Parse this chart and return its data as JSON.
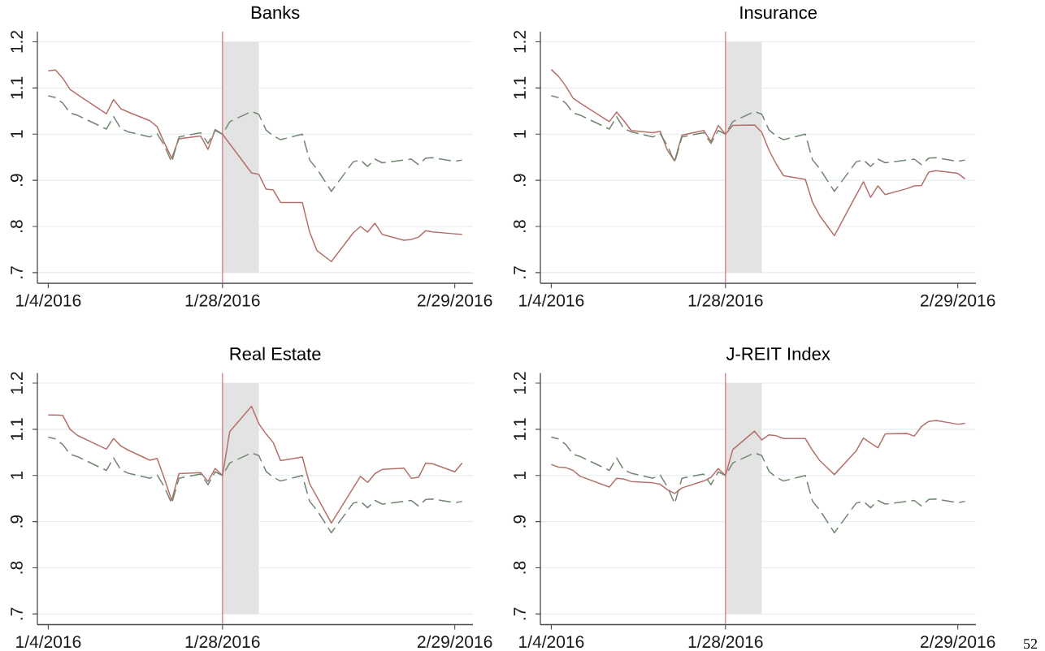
{
  "chart_data": [
    {
      "type": "line",
      "title": "Banks",
      "x": [
        "2016-01-04",
        "2016-01-05",
        "2016-01-06",
        "2016-01-07",
        "2016-01-08",
        "2016-01-12",
        "2016-01-13",
        "2016-01-14",
        "2016-01-15",
        "2016-01-18",
        "2016-01-19",
        "2016-01-20",
        "2016-01-21",
        "2016-01-22",
        "2016-01-25",
        "2016-01-26",
        "2016-01-27",
        "2016-01-28",
        "2016-01-29",
        "2016-02-01",
        "2016-02-02",
        "2016-02-03",
        "2016-02-04",
        "2016-02-05",
        "2016-02-08",
        "2016-02-09",
        "2016-02-10",
        "2016-02-12",
        "2016-02-15",
        "2016-02-16",
        "2016-02-17",
        "2016-02-18",
        "2016-02-19",
        "2016-02-22",
        "2016-02-23",
        "2016-02-24",
        "2016-02-25",
        "2016-02-26",
        "2016-02-29",
        "2016-03-01"
      ],
      "series": [
        {
          "color": "#b5706a",
          "line_style": "solid",
          "values": [
            1.137,
            1.139,
            1.121,
            1.097,
            1.086,
            1.044,
            1.075,
            1.055,
            1.048,
            1.029,
            1.016,
            0.981,
            0.948,
            0.99,
            0.996,
            0.967,
            1.01,
            1.0,
            0.979,
            0.916,
            0.913,
            0.881,
            0.879,
            0.852,
            0.852,
            0.788,
            0.748,
            0.724,
            0.786,
            0.8,
            0.788,
            0.807,
            0.783,
            0.77,
            0.772,
            0.777,
            0.791,
            0.788,
            0.784,
            0.783
          ]
        },
        {
          "color": "#71866f",
          "line_style": "dashed",
          "values": [
            1.083,
            1.079,
            1.067,
            1.046,
            1.041,
            1.011,
            1.038,
            1.012,
            1.005,
            0.994,
            1.001,
            0.975,
            0.939,
            0.994,
            1.003,
            0.98,
            1.008,
            1.0,
            1.027,
            1.049,
            1.043,
            1.009,
            0.996,
            0.988,
            1.0,
            0.944,
            0.925,
            0.876,
            0.94,
            0.944,
            0.93,
            0.946,
            0.938,
            0.944,
            0.946,
            0.934,
            0.948,
            0.949,
            0.941,
            0.944
          ]
        }
      ],
      "xlim": [
        "2016-01-02T12:00",
        "2016-03-02T12:00"
      ],
      "ylim": [
        0.677,
        1.222
      ],
      "xticks": [
        {
          "value": "2016-01-04",
          "label": "1/4/2016"
        },
        {
          "value": "2016-01-28",
          "label": "1/28/2016"
        },
        {
          "value": "2016-02-29",
          "label": "2/29/2016"
        }
      ],
      "yticks": [
        {
          "value": 0.7,
          "label": ".7"
        },
        {
          "value": 0.8,
          "label": ".8"
        },
        {
          "value": 0.9,
          "label": ".9"
        },
        1,
        1.1,
        1.2
      ],
      "grid": "y",
      "marker": "none",
      "ref_lines": [
        {
          "axis": "x",
          "value": "2016-01-28",
          "color": "#d9707a"
        }
      ],
      "bands": [
        {
          "axis": "x",
          "from": "2016-01-28",
          "to": "2016-02-02",
          "color": "#e3e3e3"
        }
      ]
    },
    {
      "type": "line",
      "title": "Insurance",
      "x": [
        "2016-01-04",
        "2016-01-05",
        "2016-01-06",
        "2016-01-07",
        "2016-01-08",
        "2016-01-12",
        "2016-01-13",
        "2016-01-14",
        "2016-01-15",
        "2016-01-18",
        "2016-01-19",
        "2016-01-20",
        "2016-01-21",
        "2016-01-22",
        "2016-01-25",
        "2016-01-26",
        "2016-01-27",
        "2016-01-28",
        "2016-01-29",
        "2016-02-01",
        "2016-02-02",
        "2016-02-03",
        "2016-02-04",
        "2016-02-05",
        "2016-02-08",
        "2016-02-09",
        "2016-02-10",
        "2016-02-12",
        "2016-02-15",
        "2016-02-16",
        "2016-02-17",
        "2016-02-18",
        "2016-02-19",
        "2016-02-22",
        "2016-02-23",
        "2016-02-24",
        "2016-02-25",
        "2016-02-26",
        "2016-02-29",
        "2016-03-01"
      ],
      "series": [
        {
          "color": "#b5706a",
          "line_style": "solid",
          "values": [
            1.14,
            1.125,
            1.104,
            1.078,
            1.067,
            1.027,
            1.048,
            1.029,
            1.008,
            1.003,
            1.006,
            0.965,
            0.942,
            0.998,
            1.008,
            0.984,
            1.019,
            1.0,
            1.019,
            1.02,
            1.004,
            0.965,
            0.935,
            0.91,
            0.902,
            0.852,
            0.823,
            0.78,
            0.868,
            0.897,
            0.863,
            0.888,
            0.869,
            0.882,
            0.888,
            0.889,
            0.918,
            0.921,
            0.915,
            0.903
          ]
        },
        {
          "color": "#71866f",
          "line_style": "dashed",
          "values": [
            1.083,
            1.079,
            1.067,
            1.046,
            1.041,
            1.011,
            1.038,
            1.012,
            1.005,
            0.994,
            1.001,
            0.975,
            0.939,
            0.994,
            1.003,
            0.98,
            1.008,
            1.0,
            1.027,
            1.049,
            1.043,
            1.009,
            0.996,
            0.988,
            1.0,
            0.944,
            0.925,
            0.876,
            0.94,
            0.944,
            0.93,
            0.946,
            0.938,
            0.944,
            0.946,
            0.934,
            0.948,
            0.949,
            0.941,
            0.944
          ]
        }
      ],
      "xlim": [
        "2016-01-02T12:00",
        "2016-03-02T12:00"
      ],
      "ylim": [
        0.677,
        1.222
      ],
      "xticks": [
        {
          "value": "2016-01-04",
          "label": "1/4/2016"
        },
        {
          "value": "2016-01-28",
          "label": "1/28/2016"
        },
        {
          "value": "2016-02-29",
          "label": "2/29/2016"
        }
      ],
      "yticks": [
        {
          "value": 0.7,
          "label": ".7"
        },
        {
          "value": 0.8,
          "label": ".8"
        },
        {
          "value": 0.9,
          "label": ".9"
        },
        1,
        1.1,
        1.2
      ],
      "grid": "y",
      "marker": "none",
      "ref_lines": [
        {
          "axis": "x",
          "value": "2016-01-28",
          "color": "#d9707a"
        }
      ],
      "bands": [
        {
          "axis": "x",
          "from": "2016-01-28",
          "to": "2016-02-02",
          "color": "#e3e3e3"
        }
      ]
    },
    {
      "type": "line",
      "title": "Real Estate",
      "x": [
        "2016-01-04",
        "2016-01-05",
        "2016-01-06",
        "2016-01-07",
        "2016-01-08",
        "2016-01-12",
        "2016-01-13",
        "2016-01-14",
        "2016-01-15",
        "2016-01-18",
        "2016-01-19",
        "2016-01-20",
        "2016-01-21",
        "2016-01-22",
        "2016-01-25",
        "2016-01-26",
        "2016-01-27",
        "2016-01-28",
        "2016-01-29",
        "2016-02-01",
        "2016-02-02",
        "2016-02-03",
        "2016-02-04",
        "2016-02-05",
        "2016-02-08",
        "2016-02-09",
        "2016-02-10",
        "2016-02-12",
        "2016-02-15",
        "2016-02-16",
        "2016-02-17",
        "2016-02-18",
        "2016-02-19",
        "2016-02-22",
        "2016-02-23",
        "2016-02-24",
        "2016-02-25",
        "2016-02-26",
        "2016-02-29",
        "2016-03-01"
      ],
      "series": [
        {
          "color": "#b5706a",
          "line_style": "solid",
          "values": [
            1.131,
            1.131,
            1.13,
            1.1,
            1.087,
            1.057,
            1.08,
            1.064,
            1.055,
            1.033,
            1.037,
            0.993,
            0.946,
            1.004,
            1.006,
            0.987,
            1.015,
            1.0,
            1.095,
            1.15,
            1.112,
            1.09,
            1.071,
            1.032,
            1.04,
            0.982,
            0.954,
            0.897,
            0.973,
            0.998,
            0.985,
            1.004,
            1.013,
            1.016,
            0.994,
            0.996,
            1.027,
            1.025,
            1.008,
            1.027
          ]
        },
        {
          "color": "#71866f",
          "line_style": "dashed",
          "values": [
            1.083,
            1.079,
            1.067,
            1.046,
            1.041,
            1.011,
            1.038,
            1.012,
            1.005,
            0.994,
            1.001,
            0.975,
            0.939,
            0.994,
            1.003,
            0.98,
            1.008,
            1.0,
            1.027,
            1.049,
            1.043,
            1.009,
            0.996,
            0.988,
            1.0,
            0.944,
            0.925,
            0.876,
            0.94,
            0.944,
            0.93,
            0.946,
            0.938,
            0.944,
            0.946,
            0.934,
            0.948,
            0.949,
            0.941,
            0.944
          ]
        }
      ],
      "xlim": [
        "2016-01-02T12:00",
        "2016-03-02T12:00"
      ],
      "ylim": [
        0.677,
        1.222
      ],
      "xticks": [
        {
          "value": "2016-01-04",
          "label": "1/4/2016"
        },
        {
          "value": "2016-01-28",
          "label": "1/28/2016"
        },
        {
          "value": "2016-02-29",
          "label": "2/29/2016"
        }
      ],
      "yticks": [
        {
          "value": 0.7,
          "label": ".7"
        },
        {
          "value": 0.8,
          "label": ".8"
        },
        {
          "value": 0.9,
          "label": ".9"
        },
        1,
        1.1,
        1.2
      ],
      "grid": "y",
      "marker": "none",
      "ref_lines": [
        {
          "axis": "x",
          "value": "2016-01-28",
          "color": "#d9707a"
        }
      ],
      "bands": [
        {
          "axis": "x",
          "from": "2016-01-28",
          "to": "2016-02-02",
          "color": "#e3e3e3"
        }
      ]
    },
    {
      "type": "line",
      "title": "J-REIT Index",
      "x": [
        "2016-01-04",
        "2016-01-05",
        "2016-01-06",
        "2016-01-07",
        "2016-01-08",
        "2016-01-12",
        "2016-01-13",
        "2016-01-14",
        "2016-01-15",
        "2016-01-18",
        "2016-01-19",
        "2016-01-20",
        "2016-01-21",
        "2016-01-22",
        "2016-01-25",
        "2016-01-26",
        "2016-01-27",
        "2016-01-28",
        "2016-01-29",
        "2016-02-01",
        "2016-02-02",
        "2016-02-03",
        "2016-02-04",
        "2016-02-05",
        "2016-02-08",
        "2016-02-09",
        "2016-02-10",
        "2016-02-12",
        "2016-02-15",
        "2016-02-16",
        "2016-02-17",
        "2016-02-18",
        "2016-02-19",
        "2016-02-22",
        "2016-02-23",
        "2016-02-24",
        "2016-02-25",
        "2016-02-26",
        "2016-02-29",
        "2016-03-01"
      ],
      "series": [
        {
          "color": "#b5706a",
          "line_style": "solid",
          "values": [
            1.024,
            1.018,
            1.017,
            1.011,
            0.998,
            0.975,
            0.994,
            0.992,
            0.987,
            0.984,
            0.981,
            0.969,
            0.961,
            0.973,
            0.988,
            0.996,
            1.015,
            1.0,
            1.056,
            1.096,
            1.077,
            1.088,
            1.086,
            1.08,
            1.08,
            1.054,
            1.032,
            1.002,
            1.053,
            1.081,
            1.07,
            1.06,
            1.09,
            1.091,
            1.085,
            1.106,
            1.117,
            1.119,
            1.111,
            1.113
          ]
        },
        {
          "color": "#71866f",
          "line_style": "dashed",
          "values": [
            1.083,
            1.079,
            1.067,
            1.046,
            1.041,
            1.011,
            1.038,
            1.012,
            1.005,
            0.994,
            1.001,
            0.975,
            0.939,
            0.994,
            1.003,
            0.98,
            1.008,
            1.0,
            1.027,
            1.049,
            1.043,
            1.009,
            0.996,
            0.988,
            1.0,
            0.944,
            0.925,
            0.876,
            0.94,
            0.944,
            0.93,
            0.946,
            0.938,
            0.944,
            0.946,
            0.934,
            0.948,
            0.949,
            0.941,
            0.944
          ]
        }
      ],
      "xlim": [
        "2016-01-02T12:00",
        "2016-03-02T12:00"
      ],
      "ylim": [
        0.677,
        1.222
      ],
      "xticks": [
        {
          "value": "2016-01-04",
          "label": "1/4/2016"
        },
        {
          "value": "2016-01-28",
          "label": "1/28/2016"
        },
        {
          "value": "2016-02-29",
          "label": "2/29/2016"
        }
      ],
      "yticks": [
        {
          "value": 0.7,
          "label": ".7"
        },
        {
          "value": 0.8,
          "label": ".8"
        },
        {
          "value": 0.9,
          "label": ".9"
        },
        1,
        1.1,
        1.2
      ],
      "grid": "y",
      "marker": "none",
      "ref_lines": [
        {
          "axis": "x",
          "value": "2016-01-28",
          "color": "#d9707a"
        }
      ],
      "bands": [
        {
          "axis": "x",
          "from": "2016-01-28",
          "to": "2016-02-02",
          "color": "#e3e3e3"
        }
      ],
      "annotations": [
        "52"
      ]
    }
  ]
}
